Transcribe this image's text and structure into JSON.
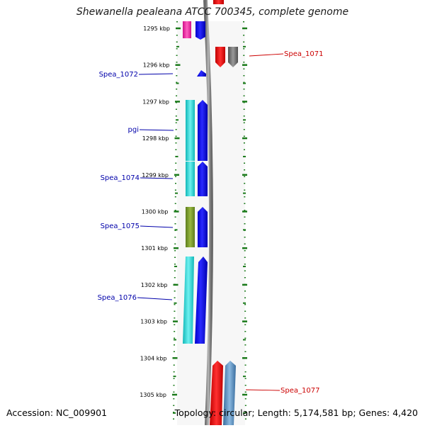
{
  "title": "Shewanella pealeana ATCC 700345, complete genome",
  "accession_text": "Accession: NC_009901",
  "topology_text": "Topology: circular; Length: 5,174,581 bp; Genes: 4,420",
  "ruler": {
    "tick_labels": [
      "1295 kbp",
      "1296 kbp",
      "1297 kbp",
      "1298 kbp",
      "1299 kbp",
      "1300 kbp",
      "1301 kbp",
      "1302 kbp",
      "1303 kbp",
      "1304 kbp",
      "1305 kbp"
    ]
  },
  "colors": {
    "left_label": "#0000aa",
    "right_label": "#cc0000",
    "tick": "#1a7a1a",
    "backbone": "#888888"
  },
  "left_gene_labels": [
    "Spea_1072",
    "pgi",
    "Spea_1074",
    "Spea_1075",
    "Spea_1076"
  ],
  "right_gene_labels": [
    "Spea_1071",
    "Spea_1077"
  ]
}
